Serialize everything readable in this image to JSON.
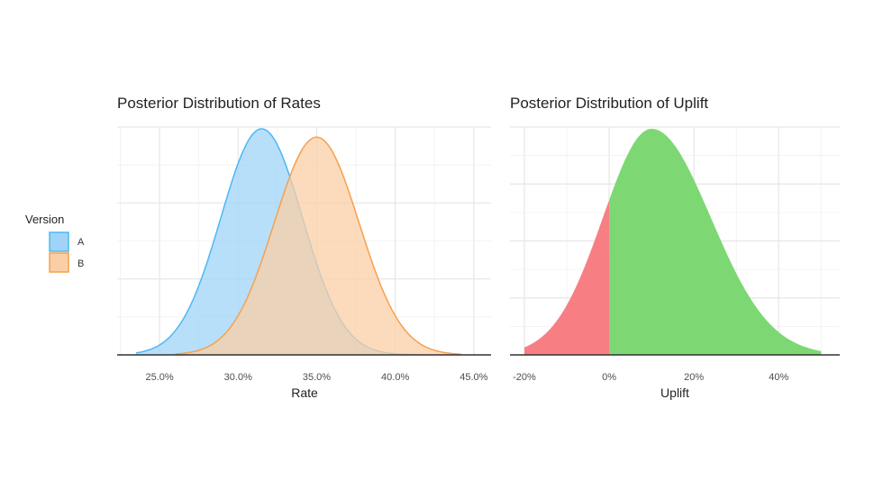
{
  "legend": {
    "title": "Version",
    "items": [
      {
        "label": "A",
        "fill": "#9fd4f7",
        "stroke": "#4db8f5"
      },
      {
        "label": "B",
        "fill": "#fbcfa6",
        "stroke": "#f5a04f"
      }
    ]
  },
  "chart_data": [
    {
      "type": "area",
      "title": "Posterior Distribution of Rates",
      "xlabel": "Rate",
      "ylabel": "",
      "xlim": [
        22.3,
        46.1
      ],
      "x_ticks": [
        25,
        30,
        35,
        40,
        45
      ],
      "x_tick_labels": [
        "25.0%",
        "30.0%",
        "35.0%",
        "40.0%",
        "45.0%"
      ],
      "y_ticks_labeled": false,
      "grid": true,
      "legend_position": "left",
      "series": [
        {
          "name": "A",
          "distribution": "normal",
          "mean": 31.5,
          "sd": 2.6,
          "range": [
            23.5,
            41.5
          ],
          "fill": "#9fd4f7",
          "stroke": "#4db8f5",
          "opacity": 0.75
        },
        {
          "name": "B",
          "distribution": "normal",
          "mean": 35.0,
          "sd": 2.7,
          "range": [
            26.0,
            44.2
          ],
          "fill": "#fbcfa6",
          "stroke": "#f5a04f",
          "opacity": 0.75
        }
      ]
    },
    {
      "type": "area",
      "title": "Posterior Distribution of Uplift",
      "xlabel": "Uplift",
      "ylabel": "",
      "xlim": [
        -23.4,
        54.4
      ],
      "x_ticks": [
        -20,
        0,
        20,
        40
      ],
      "x_tick_labels": [
        "-20%",
        "0%",
        "20%",
        "40%"
      ],
      "y_ticks_labeled": false,
      "grid": true,
      "series": [
        {
          "distribution": "skewed-normal",
          "mode": 10,
          "sd_left": 11.5,
          "sd_right": 14,
          "range": [
            -20,
            50
          ],
          "split_at": 0,
          "fill_below": "#f77f84",
          "fill_above": "#7dd873"
        }
      ]
    }
  ]
}
